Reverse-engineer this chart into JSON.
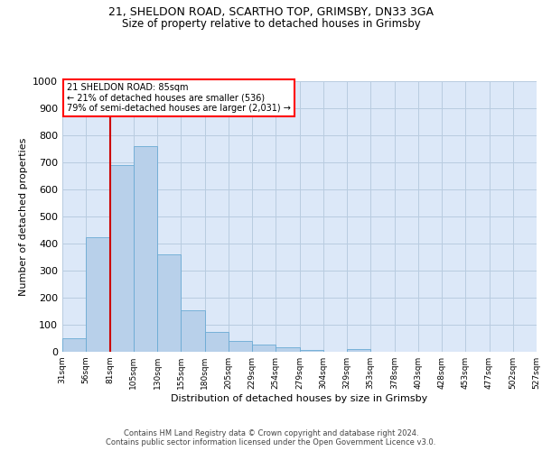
{
  "title1": "21, SHELDON ROAD, SCARTHO TOP, GRIMSBY, DN33 3GA",
  "title2": "Size of property relative to detached houses in Grimsby",
  "xlabel": "Distribution of detached houses by size in Grimsby",
  "ylabel": "Number of detached properties",
  "footnote1": "Contains HM Land Registry data © Crown copyright and database right 2024.",
  "footnote2": "Contains public sector information licensed under the Open Government Licence v3.0.",
  "annotation_line1": "21 SHELDON ROAD: 85sqm",
  "annotation_line2": "← 21% of detached houses are smaller (536)",
  "annotation_line3": "79% of semi-detached houses are larger (2,031) →",
  "bin_heights": [
    50,
    425,
    690,
    760,
    360,
    155,
    75,
    40,
    27,
    18,
    8,
    0,
    9,
    0,
    0,
    0,
    0,
    0,
    0,
    0
  ],
  "categories": [
    "31sqm",
    "56sqm",
    "81sqm",
    "105sqm",
    "130sqm",
    "155sqm",
    "180sqm",
    "205sqm",
    "229sqm",
    "254sqm",
    "279sqm",
    "304sqm",
    "329sqm",
    "353sqm",
    "378sqm",
    "403sqm",
    "428sqm",
    "453sqm",
    "477sqm",
    "502sqm",
    "527sqm"
  ],
  "bar_color": "#b8d0ea",
  "bar_edge_color": "#6aaad4",
  "vline_color": "#cc0000",
  "vline_x": 2,
  "ylim": [
    0,
    1000
  ],
  "yticks": [
    0,
    100,
    200,
    300,
    400,
    500,
    600,
    700,
    800,
    900,
    1000
  ],
  "bg_color": "#dce8f8",
  "grid_color": "#b8cce0",
  "title1_fontsize": 9,
  "title2_fontsize": 8.5,
  "xlabel_fontsize": 8,
  "ylabel_fontsize": 8,
  "xtick_fontsize": 6.5,
  "ytick_fontsize": 8,
  "annotation_fontsize": 7,
  "footnote_fontsize": 6
}
